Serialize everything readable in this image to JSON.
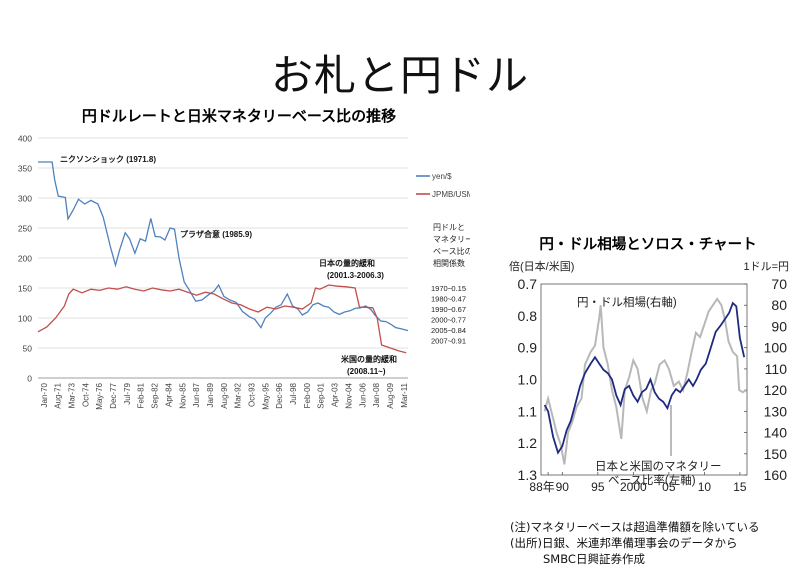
{
  "slide": {
    "title": "お札と円ドル"
  },
  "chart_data": [
    {
      "type": "line",
      "title": "円ドルレートと日米マネタリーベース比の推移",
      "ylim": [
        0,
        400
      ],
      "yticks": [
        0,
        50,
        100,
        150,
        200,
        250,
        300,
        350,
        400
      ],
      "x_tick_labels": [
        "Jan-70",
        "Aug-71",
        "Mar-73",
        "Oct-74",
        "May-76",
        "Dec-77",
        "Jul-79",
        "Feb-81",
        "Sep-82",
        "Apr-84",
        "Nov-85",
        "Jun-87",
        "Jan-89",
        "Aug-90",
        "Mar-92",
        "Oct-93",
        "May-95",
        "Dec-96",
        "Jul-98",
        "Feb-00",
        "Sep-01",
        "Apr-03",
        "Nov-04",
        "Jun-06",
        "Jan-08",
        "Aug-09",
        "Mar-11"
      ],
      "xlim": [
        1970,
        2012
      ],
      "grid": true,
      "legend": "right",
      "series": [
        {
          "name": "yen/$",
          "color": "#4f81bd",
          "points": [
            [
              1970,
              360
            ],
            [
              1971.6,
              360
            ],
            [
              1971.9,
              330
            ],
            [
              1972.3,
              303
            ],
            [
              1973.1,
              301
            ],
            [
              1973.4,
              265
            ],
            [
              1974,
              280
            ],
            [
              1974.6,
              298
            ],
            [
              1975.3,
              290
            ],
            [
              1976,
              296
            ],
            [
              1976.8,
              290
            ],
            [
              1977.4,
              268
            ],
            [
              1978.2,
              220
            ],
            [
              1978.8,
              188
            ],
            [
              1979.3,
              215
            ],
            [
              1979.9,
              242
            ],
            [
              1980.4,
              232
            ],
            [
              1981,
              208
            ],
            [
              1981.6,
              232
            ],
            [
              1982.2,
              228
            ],
            [
              1982.8,
              266
            ],
            [
              1983.3,
              236
            ],
            [
              1983.9,
              235
            ],
            [
              1984.4,
              230
            ],
            [
              1985,
              250
            ],
            [
              1985.5,
              248
            ],
            [
              1986,
              200
            ],
            [
              1986.6,
              160
            ],
            [
              1987.2,
              146
            ],
            [
              1987.9,
              128
            ],
            [
              1988.6,
              130
            ],
            [
              1989.3,
              138
            ],
            [
              1990,
              145
            ],
            [
              1990.5,
              155
            ],
            [
              1991.1,
              136
            ],
            [
              1991.8,
              130
            ],
            [
              1992.5,
              126
            ],
            [
              1993.2,
              111
            ],
            [
              1994,
              102
            ],
            [
              1994.6,
              98
            ],
            [
              1995.3,
              84
            ],
            [
              1995.8,
              100
            ],
            [
              1996.4,
              108
            ],
            [
              1997,
              118
            ],
            [
              1997.6,
              122
            ],
            [
              1998.3,
              140
            ],
            [
              1998.9,
              120
            ],
            [
              1999.5,
              115
            ],
            [
              2000,
              105
            ],
            [
              2000.6,
              110
            ],
            [
              2001.2,
              122
            ],
            [
              2001.8,
              125
            ],
            [
              2002.4,
              120
            ],
            [
              2003,
              118
            ],
            [
              2003.6,
              110
            ],
            [
              2004.2,
              106
            ],
            [
              2004.8,
              110
            ],
            [
              2005.4,
              112
            ],
            [
              2006,
              116
            ],
            [
              2006.6,
              117
            ],
            [
              2007.2,
              120
            ],
            [
              2007.8,
              114
            ],
            [
              2008.3,
              104
            ],
            [
              2008.9,
              95
            ],
            [
              2009.5,
              94
            ],
            [
              2010,
              90
            ],
            [
              2010.6,
              84
            ],
            [
              2011.2,
              82
            ],
            [
              2012,
              79
            ]
          ]
        },
        {
          "name": "JPMB/USMB",
          "color": "#c0504d",
          "points": [
            [
              1970,
              77
            ],
            [
              1971,
              85
            ],
            [
              1972,
              100
            ],
            [
              1973,
              120
            ],
            [
              1973.5,
              140
            ],
            [
              1974,
              148
            ],
            [
              1975,
              142
            ],
            [
              1976,
              148
            ],
            [
              1977,
              146
            ],
            [
              1978,
              150
            ],
            [
              1979,
              148
            ],
            [
              1980,
              152
            ],
            [
              1981,
              148
            ],
            [
              1982,
              145
            ],
            [
              1983,
              150
            ],
            [
              1984,
              147
            ],
            [
              1985,
              145
            ],
            [
              1986,
              148
            ],
            [
              1987,
              143
            ],
            [
              1988,
              138
            ],
            [
              1989,
              143
            ],
            [
              1990,
              140
            ],
            [
              1991,
              132
            ],
            [
              1992,
              125
            ],
            [
              1993,
              122
            ],
            [
              1994,
              115
            ],
            [
              1995,
              110
            ],
            [
              1996,
              118
            ],
            [
              1997,
              115
            ],
            [
              1998,
              120
            ],
            [
              1999,
              118
            ],
            [
              2000,
              115
            ],
            [
              2001,
              125
            ],
            [
              2001.5,
              150
            ],
            [
              2002,
              148
            ],
            [
              2003,
              155
            ],
            [
              2004,
              153
            ],
            [
              2005,
              152
            ],
            [
              2006,
              150
            ],
            [
              2006.5,
              118
            ],
            [
              2007,
              118
            ],
            [
              2008,
              117
            ],
            [
              2008.5,
              100
            ],
            [
              2009,
              55
            ],
            [
              2010,
              50
            ],
            [
              2011,
              45
            ],
            [
              2011.8,
              42
            ]
          ]
        }
      ],
      "correlation_table": {
        "header": [
          "円ドルと",
          "マネタリー",
          "ベース比の",
          "相関係数"
        ],
        "rows": [
          [
            "1970~",
            "0.15"
          ],
          [
            "1980~",
            "0.47"
          ],
          [
            "1990~",
            "0.67"
          ],
          [
            "2000~",
            "0.77"
          ],
          [
            "2005~",
            "0.84"
          ],
          [
            "2007~",
            "0.91"
          ]
        ]
      },
      "annotations": {
        "nixon": "ニクソンショック (1971.8)",
        "plaza": "プラザ合意 (1985.9)",
        "jp_qe_1": "日本の量的緩和",
        "jp_qe_2": "(2001.3-2006.3)",
        "us_qe_1": "米国の量的緩和",
        "us_qe_2": "(2008.11~)"
      }
    },
    {
      "type": "line",
      "title": "円・ドル相場とソロス・チャート",
      "left_axis_label": "倍(日本/米国)",
      "right_axis_label": "1ドル=円",
      "left_ylim": [
        0.7,
        1.3
      ],
      "left_ticks": [
        "0.7",
        "0.8",
        "0.9",
        "1.0",
        "1.1",
        "1.2",
        "1.3"
      ],
      "right_ylim": [
        70,
        160
      ],
      "right_ticks": [
        "70",
        "80",
        "90",
        "100",
        "110",
        "120",
        "130",
        "140",
        "150",
        "160"
      ],
      "x_tick_labels": [
        "88年",
        "90",
        "95",
        "2000",
        "05",
        "10",
        "15"
      ],
      "xlim": [
        1987,
        2016
      ],
      "series": [
        {
          "name": "円・ドル相場(右軸)",
          "color": "#b8b8b8",
          "axis": "right",
          "points": [
            [
              1987.5,
              130
            ],
            [
              1988,
              124
            ],
            [
              1988.6,
              132
            ],
            [
              1989.2,
              140
            ],
            [
              1989.8,
              146
            ],
            [
              1990.3,
              155
            ],
            [
              1990.8,
              140
            ],
            [
              1991.4,
              135
            ],
            [
              1992,
              128
            ],
            [
              1992.7,
              124
            ],
            [
              1993.2,
              108
            ],
            [
              1994,
              102
            ],
            [
              1994.6,
              99
            ],
            [
              1995.2,
              86
            ],
            [
              1995.4,
              80
            ],
            [
              1995.8,
              100
            ],
            [
              1996.4,
              108
            ],
            [
              1997,
              120
            ],
            [
              1997.6,
              128
            ],
            [
              1998.3,
              143
            ],
            [
              1998.8,
              120
            ],
            [
              1999.4,
              114
            ],
            [
              2000,
              106
            ],
            [
              2000.6,
              110
            ],
            [
              2001.3,
              124
            ],
            [
              2001.9,
              130
            ],
            [
              2002.5,
              120
            ],
            [
              2003,
              117
            ],
            [
              2003.7,
              108
            ],
            [
              2004.4,
              106
            ],
            [
              2005,
              110
            ],
            [
              2005.7,
              118
            ],
            [
              2006.4,
              116
            ],
            [
              2007,
              120
            ],
            [
              2007.6,
              112
            ],
            [
              2008.2,
              102
            ],
            [
              2008.8,
              93
            ],
            [
              2009.4,
              95
            ],
            [
              2010,
              89
            ],
            [
              2010.6,
              83
            ],
            [
              2011.2,
              80
            ],
            [
              2011.8,
              77
            ],
            [
              2012.4,
              80
            ],
            [
              2012.9,
              87
            ],
            [
              2013.4,
              97
            ],
            [
              2014,
              102
            ],
            [
              2014.6,
              104
            ],
            [
              2014.9,
              120
            ],
            [
              2015.4,
              121
            ],
            [
              2015.9,
              120
            ]
          ]
        },
        {
          "name": "日本と米国のマネタリーベース比率(左軸)",
          "color": "#1f2a80",
          "axis": "left",
          "points": [
            [
              1987.5,
              1.08
            ],
            [
              1988,
              1.1
            ],
            [
              1988.7,
              1.18
            ],
            [
              1989.4,
              1.23
            ],
            [
              1990,
              1.21
            ],
            [
              1990.6,
              1.16
            ],
            [
              1991.2,
              1.13
            ],
            [
              1991.8,
              1.08
            ],
            [
              1992.5,
              1.02
            ],
            [
              1993.2,
              0.98
            ],
            [
              1994,
              0.95
            ],
            [
              1994.6,
              0.93
            ],
            [
              1995.2,
              0.95
            ],
            [
              1995.8,
              0.97
            ],
            [
              1996.4,
              0.98
            ],
            [
              1997,
              1.0
            ],
            [
              1997.6,
              1.05
            ],
            [
              1998.2,
              1.08
            ],
            [
              1998.8,
              1.03
            ],
            [
              1999.4,
              1.02
            ],
            [
              2000,
              1.05
            ],
            [
              2000.6,
              1.07
            ],
            [
              2001.2,
              1.04
            ],
            [
              2001.8,
              1.03
            ],
            [
              2002.4,
              1.0
            ],
            [
              2003,
              1.04
            ],
            [
              2003.6,
              1.06
            ],
            [
              2004.2,
              1.07
            ],
            [
              2004.8,
              1.09
            ],
            [
              2005.4,
              1.05
            ],
            [
              2006,
              1.03
            ],
            [
              2006.6,
              1.04
            ],
            [
              2007.2,
              1.02
            ],
            [
              2007.8,
              1.0
            ],
            [
              2008.4,
              1.02
            ],
            [
              2008.9,
              1.0
            ],
            [
              2009.5,
              0.97
            ],
            [
              2010.2,
              0.95
            ],
            [
              2010.9,
              0.9
            ],
            [
              2011.6,
              0.85
            ],
            [
              2012.3,
              0.83
            ],
            [
              2012.9,
              0.81
            ],
            [
              2013.5,
              0.79
            ],
            [
              2014,
              0.76
            ],
            [
              2014.5,
              0.77
            ],
            [
              2015,
              0.87
            ],
            [
              2015.6,
              0.93
            ]
          ]
        }
      ],
      "annotations": {
        "yen_label": "円・ドル相場(右軸)",
        "ratio_label_1": "日本と米国のマネタリー",
        "ratio_label_2": "ベース比率(左軸)"
      },
      "notes": [
        "(注)マネタリーベースは超過準備額を除いている",
        "(出所)日銀、米連邦準備理事会のデータから",
        "SMBC日興証券作成"
      ]
    }
  ]
}
